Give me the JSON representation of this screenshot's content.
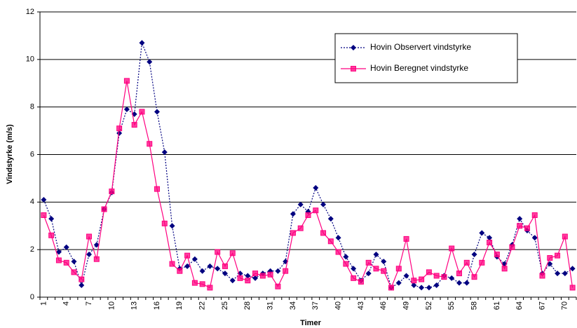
{
  "chart_data": {
    "type": "line",
    "x_label": "Timer",
    "y_label": "Vindstyrke  (m/s)",
    "categories": [
      "1",
      null,
      null,
      "4",
      null,
      null,
      "7",
      null,
      null,
      "10",
      null,
      null,
      "13",
      null,
      null,
      "16",
      null,
      null,
      "19",
      null,
      null,
      "22",
      null,
      null,
      "25",
      null,
      null,
      "28",
      null,
      null,
      "31",
      null,
      null,
      "34",
      null,
      null,
      "37",
      null,
      null,
      "40",
      null,
      null,
      "43",
      null,
      null,
      "46",
      null,
      null,
      "49",
      null,
      null,
      "52",
      null,
      null,
      "55",
      null,
      null,
      "58",
      null,
      null,
      "61",
      null,
      null,
      "64",
      null,
      null,
      "67",
      null,
      null,
      "70",
      null
    ],
    "series": [
      {
        "name": "Hovin Observert vindstyrke",
        "color": "#000080",
        "line_style": "dotted",
        "marker": "diamond",
        "values": [
          4.1,
          3.3,
          1.9,
          2.1,
          1.5,
          0.5,
          1.8,
          2.2,
          3.7,
          4.4,
          6.9,
          7.9,
          7.7,
          10.7,
          9.9,
          7.8,
          6.1,
          3.0,
          1.2,
          1.3,
          1.6,
          1.1,
          1.3,
          1.2,
          1.0,
          0.7,
          1.0,
          0.9,
          0.8,
          1.0,
          1.1,
          1.1,
          1.5,
          3.5,
          3.9,
          3.6,
          4.6,
          3.9,
          3.3,
          2.5,
          1.7,
          1.2,
          0.7,
          1.0,
          1.8,
          1.5,
          0.4,
          0.6,
          0.9,
          0.5,
          0.4,
          0.4,
          0.5,
          0.9,
          0.8,
          0.6,
          0.6,
          1.8,
          2.7,
          2.5,
          1.7,
          1.4,
          2.2,
          3.3,
          2.8,
          2.5,
          1.0,
          1.4,
          1.0,
          1.0,
          1.2
        ]
      },
      {
        "name": "Hovin Beregnet vindstyrke",
        "color": "#ff0080",
        "line_style": "solid",
        "marker": "square",
        "values": [
          3.45,
          2.6,
          1.55,
          1.45,
          1.05,
          0.75,
          2.55,
          1.6,
          3.7,
          4.45,
          7.1,
          9.1,
          7.25,
          7.8,
          6.45,
          4.55,
          3.1,
          1.4,
          1.1,
          1.75,
          0.6,
          0.55,
          0.4,
          1.9,
          1.3,
          1.85,
          0.8,
          0.7,
          1.0,
          0.9,
          0.95,
          0.45,
          1.1,
          2.7,
          2.9,
          3.45,
          3.65,
          2.7,
          2.35,
          1.9,
          1.4,
          0.8,
          0.65,
          1.45,
          1.2,
          1.1,
          0.4,
          1.2,
          2.45,
          0.7,
          0.75,
          1.05,
          0.9,
          0.85,
          2.05,
          1.0,
          1.45,
          0.85,
          1.45,
          2.3,
          1.8,
          1.2,
          2.1,
          3.0,
          2.9,
          3.45,
          0.9,
          1.65,
          1.75,
          2.55,
          0.4
        ]
      }
    ],
    "ylim": [
      0,
      12
    ],
    "yticks": [
      0,
      2,
      4,
      6,
      8,
      10,
      12
    ],
    "grid": true,
    "legend": "upper right"
  }
}
